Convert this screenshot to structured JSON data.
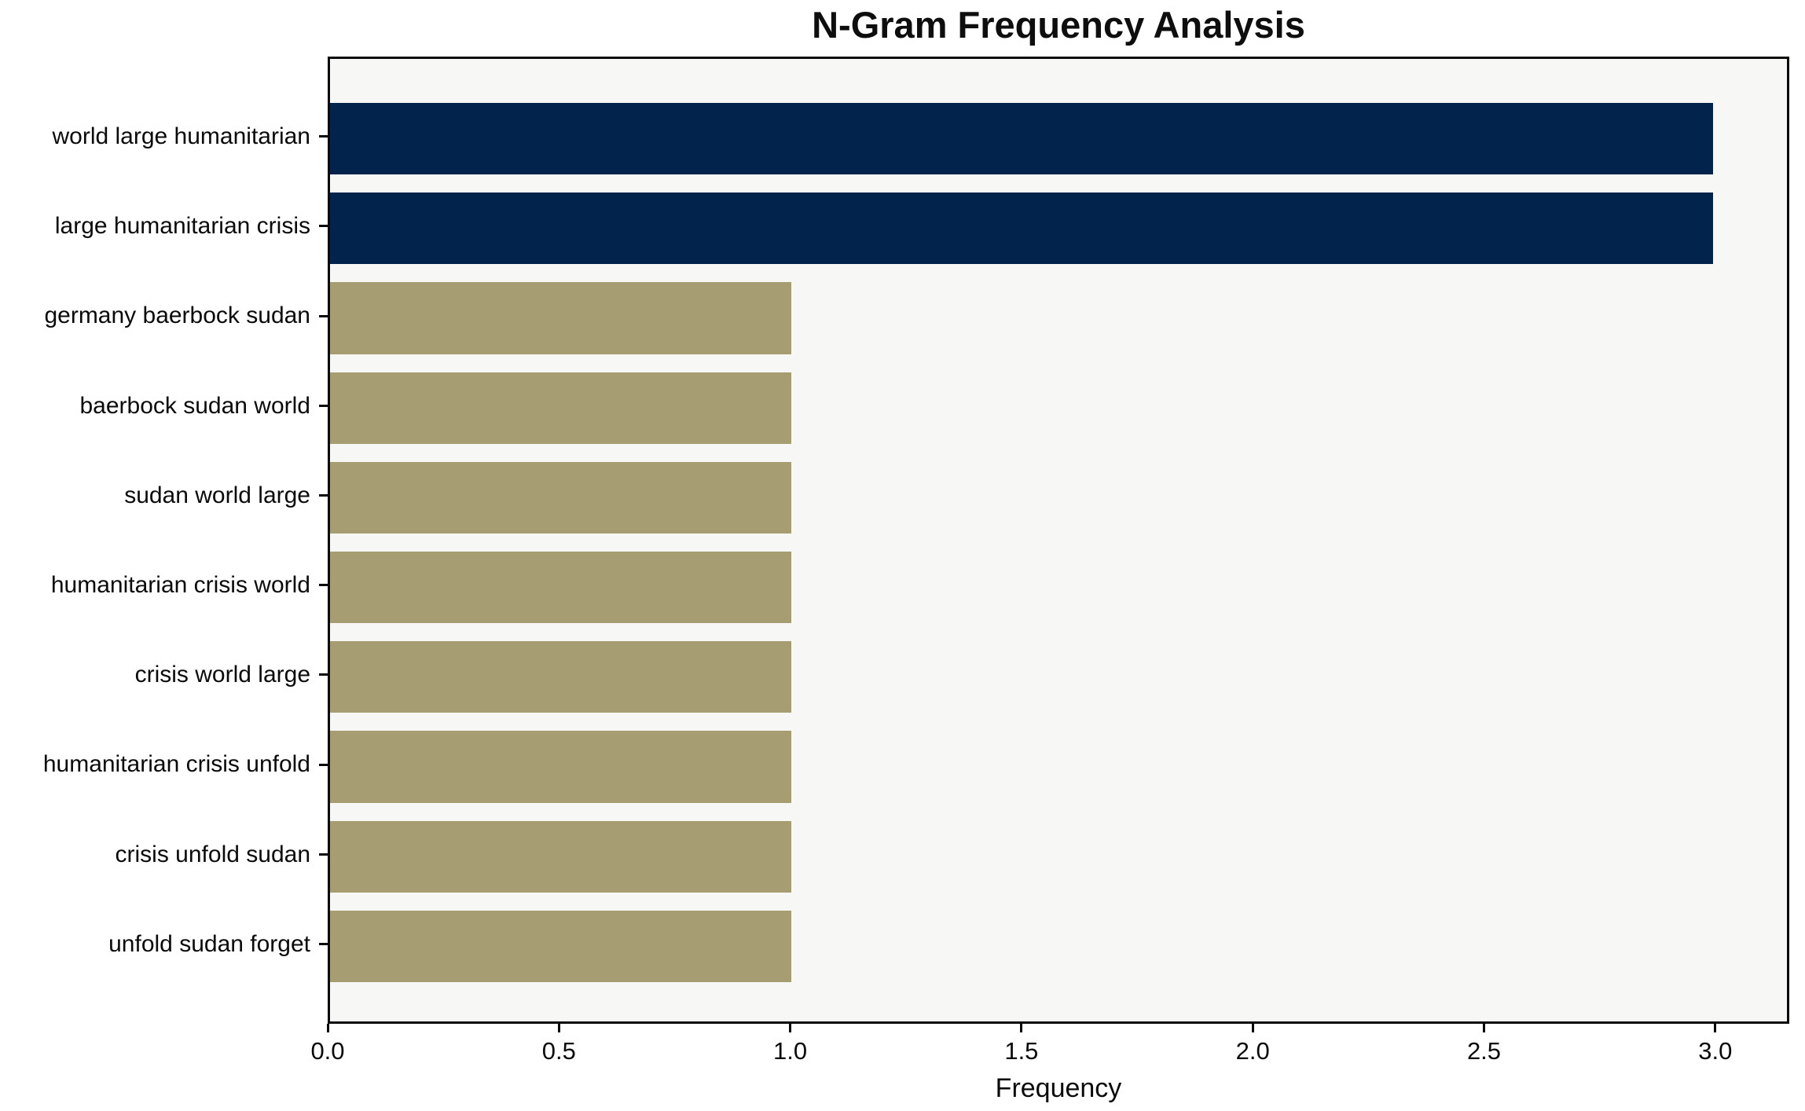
{
  "title": "N-Gram Frequency Analysis",
  "colors": {
    "bar_high": "#01234c",
    "bar_low": "#a69d72",
    "plot_background": "#f7f7f5",
    "axis": "#0a0a0a",
    "page_background": "#ffffff"
  },
  "chart_data": {
    "type": "bar",
    "orientation": "horizontal",
    "title": "N-Gram Frequency Analysis",
    "xlabel": "Frequency",
    "ylabel": "",
    "categories": [
      "world large humanitarian",
      "large humanitarian crisis",
      "germany baerbock sudan",
      "baerbock sudan world",
      "sudan world large",
      "humanitarian crisis world",
      "crisis world large",
      "humanitarian crisis unfold",
      "crisis unfold sudan",
      "unfold sudan forget"
    ],
    "values": [
      3,
      3,
      1,
      1,
      1,
      1,
      1,
      1,
      1,
      1
    ],
    "bar_colors": [
      "#01234c",
      "#01234c",
      "#a69d72",
      "#a69d72",
      "#a69d72",
      "#a69d72",
      "#a69d72",
      "#a69d72",
      "#a69d72",
      "#a69d72"
    ],
    "xlim": [
      0,
      3.16
    ],
    "xticks": [
      0.0,
      0.5,
      1.0,
      1.5,
      2.0,
      2.5,
      3.0
    ],
    "xtick_labels": [
      "0.0",
      "0.5",
      "1.0",
      "1.5",
      "2.0",
      "2.5",
      "3.0"
    ],
    "grid": false,
    "legend": null
  }
}
